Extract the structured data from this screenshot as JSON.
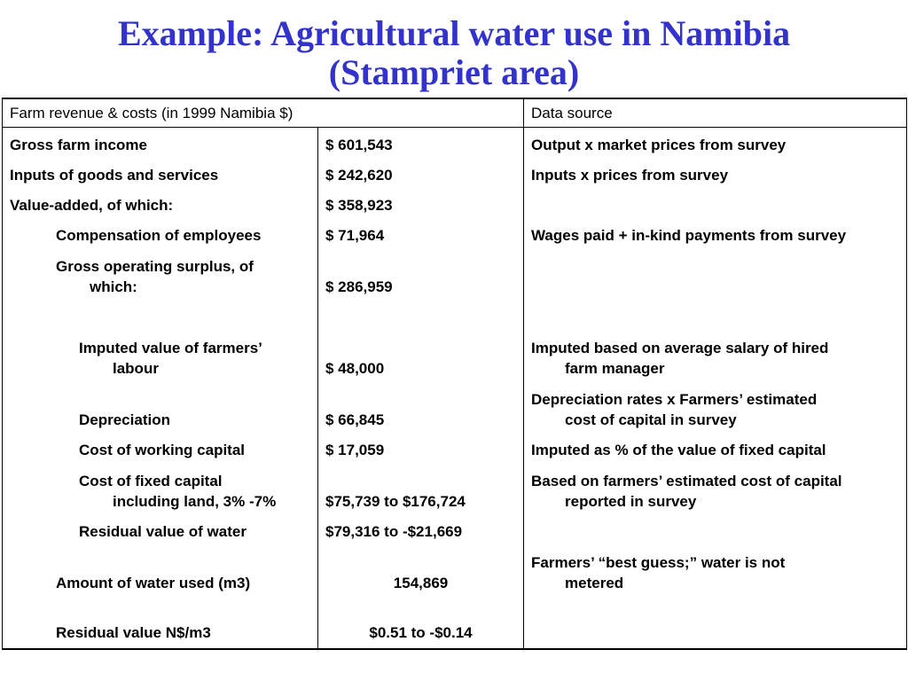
{
  "title": {
    "line1": "Example:  Agricultural water use in Namibia",
    "line2": "(Stampriet area)"
  },
  "table": {
    "header": {
      "item": "Farm revenue & costs (in 1999 Namibia $)",
      "source": "Data source"
    },
    "rows": [
      {
        "label": "Gross farm income",
        "value": "$  601,543",
        "source": "Output x market prices from survey"
      },
      {
        "label": "Inputs of goods and services",
        "value": "$  242,620",
        "source": "Inputs x prices from survey"
      },
      {
        "label": "Value-added, of which:",
        "value": "$  358,923",
        "source": ""
      },
      {
        "label": "Compensation of employees",
        "value": "$   71,964",
        "source": "Wages paid + in-kind payments from survey"
      },
      {
        "label": "Gross operating surplus, of",
        "label_cont": "which:",
        "value": "$ 286,959",
        "source": ""
      },
      {
        "label": "Imputed value of farmers’",
        "label_cont": "labour",
        "value": "$   48,000",
        "source": "Imputed based on average salary of hired",
        "source_cont": "farm manager"
      },
      {
        "label": "Depreciation",
        "value": "$   66,845",
        "source": "Depreciation rates x Farmers’ estimated",
        "source_cont": "cost of capital in survey"
      },
      {
        "label": "Cost of working capital",
        "value": "$   17,059",
        "source": "Imputed as % of the value of fixed capital"
      },
      {
        "label": "Cost of fixed capital",
        "label_cont": "including land, 3% -7%",
        "value": "$75,739  to  $176,724",
        "source": "Based on farmers’ estimated cost of capital",
        "source_cont": "reported in survey"
      },
      {
        "label": "Residual value of water",
        "value": "$79,316 to -$21,669",
        "source": ""
      },
      {
        "label": "Amount of water used (m3)",
        "value": "154,869",
        "source": "Farmers’ “best guess;” water is not",
        "source_cont": "metered"
      },
      {
        "label": "Residual value N$/m3",
        "value": "$0.51 to -$0.14",
        "source": ""
      }
    ]
  }
}
